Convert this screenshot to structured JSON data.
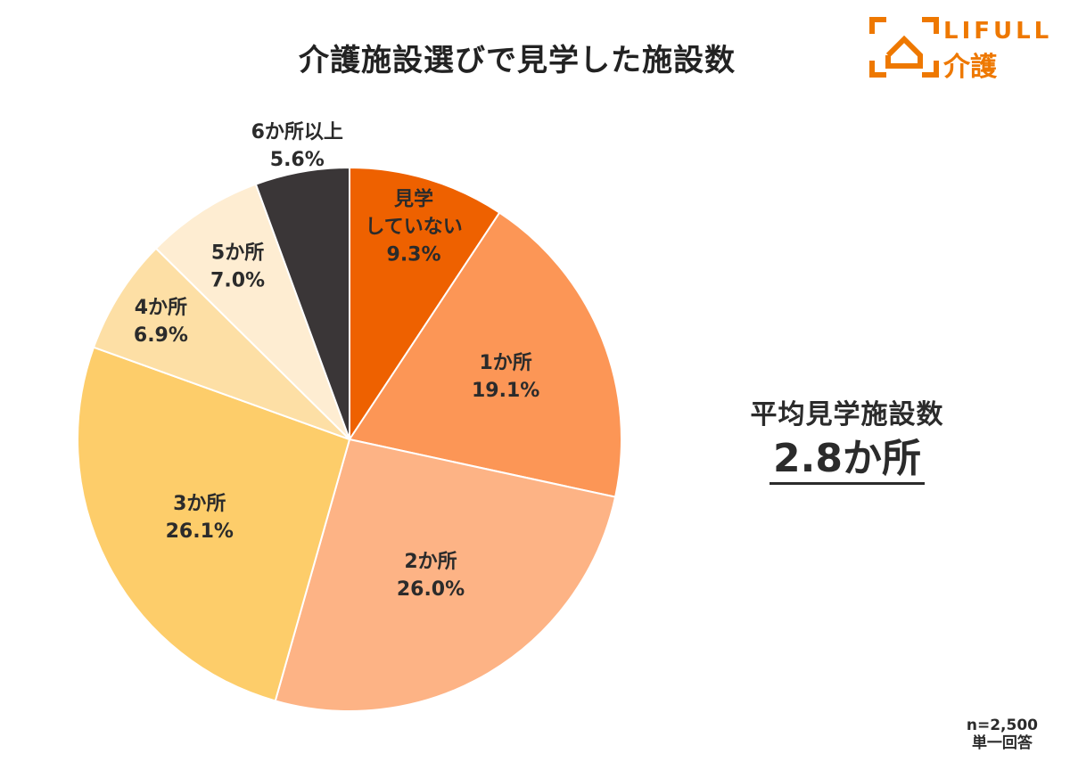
{
  "title": "介護施設選びで見学した施設数",
  "logo": {
    "word": "LIFULL",
    "word2": "介護",
    "color": "#ee7800"
  },
  "average": {
    "label": "平均見学施設数",
    "value": "2.8か所"
  },
  "note": {
    "n": "n=2,500",
    "type": "単一回答"
  },
  "chart_data": {
    "type": "pie",
    "title": "介護施設選びで見学した施設数",
    "start": "top, clockwise",
    "slices": [
      {
        "label": [
          "見学",
          "していない"
        ],
        "value": 9.3,
        "display": "9.3%",
        "color": "#ee6100"
      },
      {
        "label": [
          "1か所"
        ],
        "value": 19.1,
        "display": "19.1%",
        "color": "#fc9656"
      },
      {
        "label": [
          "2か所"
        ],
        "value": 26.0,
        "display": "26.0%",
        "color": "#fdb385"
      },
      {
        "label": [
          "3か所"
        ],
        "value": 26.1,
        "display": "26.1%",
        "color": "#fdcd6a"
      },
      {
        "label": [
          "4か所"
        ],
        "value": 6.9,
        "display": "6.9%",
        "color": "#fddfa5"
      },
      {
        "label": [
          "5か所"
        ],
        "value": 7.0,
        "display": "7.0%",
        "color": "#feedd2"
      },
      {
        "label": [
          "6か所以上"
        ],
        "value": 5.6,
        "display": "5.6%",
        "color": "#3a3637"
      }
    ]
  }
}
